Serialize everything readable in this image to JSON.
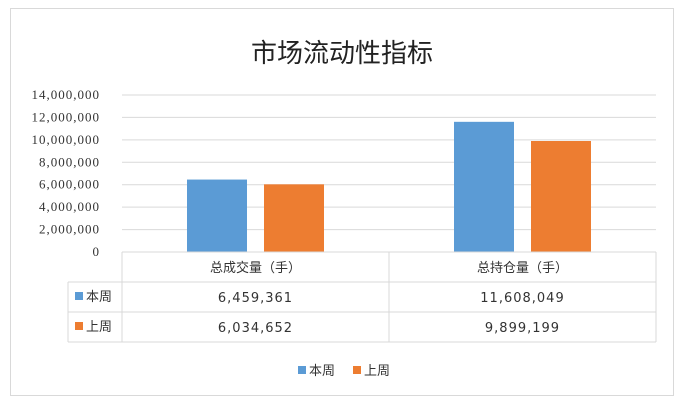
{
  "chart_data": {
    "type": "bar",
    "title": "市场流动性指标",
    "categories": [
      "总成交量（手）",
      "总持仓量（手）"
    ],
    "series": [
      {
        "name": "本周",
        "values": [
          6459361,
          11608049
        ],
        "labels": [
          "6,459,361",
          "11,608,049"
        ],
        "color": "#5b9bd5"
      },
      {
        "name": "上周",
        "values": [
          6034652,
          9899199
        ],
        "labels": [
          "6,034,652",
          "9,899,199"
        ],
        "color": "#ed7d31"
      }
    ],
    "ylim": [
      0,
      14000000
    ],
    "yticks": [
      0,
      2000000,
      4000000,
      6000000,
      8000000,
      10000000,
      12000000,
      14000000
    ],
    "ytick_labels": [
      "0",
      "2,000,000",
      "4,000,000",
      "6,000,000",
      "8,000,000",
      "10,000,000",
      "12,000,000",
      "14,000,000"
    ],
    "grid": true,
    "legend": "bottom",
    "data_table": true
  }
}
